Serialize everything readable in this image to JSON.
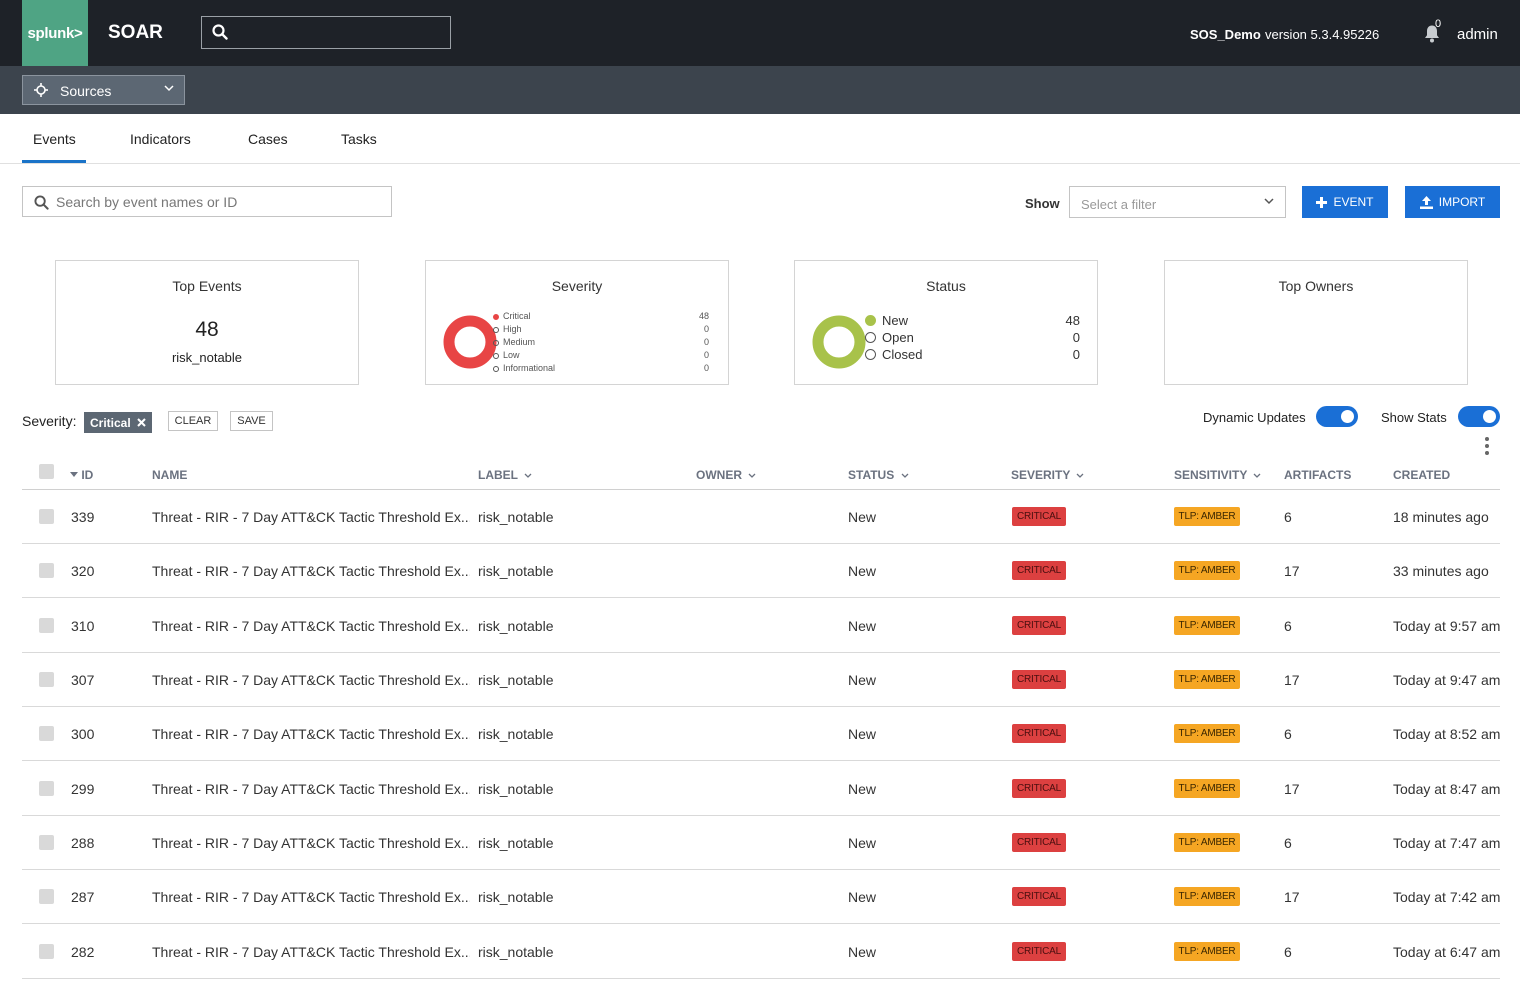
{
  "header": {
    "logo": "splunk>",
    "app_name": "SOAR",
    "instance_name": "SOS_Demo",
    "version": "version 5.3.4.95226",
    "notification_count": "0",
    "user": "admin"
  },
  "subnav": {
    "sources_label": "Sources"
  },
  "tabs": [
    {
      "label": "Events",
      "active": true
    },
    {
      "label": "Indicators"
    },
    {
      "label": "Cases"
    },
    {
      "label": "Tasks"
    }
  ],
  "search": {
    "placeholder": "Search by event names or ID"
  },
  "filter": {
    "show_label": "Show",
    "placeholder": "Select a filter"
  },
  "actions": {
    "event_label": "EVENT",
    "import_label": "IMPORT"
  },
  "stats": {
    "top_events": {
      "title": "Top Events",
      "count": "48",
      "label": "risk_notable"
    },
    "severity": {
      "title": "Severity",
      "items": [
        {
          "label": "Critical",
          "value": "48"
        },
        {
          "label": "High",
          "value": "0"
        },
        {
          "label": "Medium",
          "value": "0"
        },
        {
          "label": "Low",
          "value": "0"
        },
        {
          "label": "Informational",
          "value": "0"
        }
      ]
    },
    "status": {
      "title": "Status",
      "items": [
        {
          "label": "New",
          "value": "48"
        },
        {
          "label": "Open",
          "value": "0"
        },
        {
          "label": "Closed",
          "value": "0"
        }
      ]
    },
    "top_owners": {
      "title": "Top Owners"
    }
  },
  "active_filter": {
    "label": "Severity:",
    "chip": "Critical",
    "clear_label": "CLEAR",
    "save_label": "SAVE"
  },
  "toggles": {
    "dynamic_updates": {
      "label": "Dynamic Updates",
      "on": true
    },
    "show_stats": {
      "label": "Show Stats",
      "on": true
    }
  },
  "table": {
    "columns": {
      "id": "ID",
      "name": "NAME",
      "label": "LABEL",
      "owner": "OWNER",
      "status": "STATUS",
      "severity": "SEVERITY",
      "sensitivity": "SENSITIVITY",
      "artifacts": "ARTIFACTS",
      "created": "CREATED"
    },
    "rows": [
      {
        "id": "339",
        "name": "Threat - RIR - 7 Day ATT&CK Tactic Threshold Ex...",
        "label": "risk_notable",
        "owner": "",
        "status": "New",
        "severity": "CRITICAL",
        "sensitivity": "TLP: AMBER",
        "artifacts": "6",
        "created": "18 minutes ago"
      },
      {
        "id": "320",
        "name": "Threat - RIR - 7 Day ATT&CK Tactic Threshold Ex...",
        "label": "risk_notable",
        "owner": "",
        "status": "New",
        "severity": "CRITICAL",
        "sensitivity": "TLP: AMBER",
        "artifacts": "17",
        "created": "33 minutes ago"
      },
      {
        "id": "310",
        "name": "Threat - RIR - 7 Day ATT&CK Tactic Threshold Ex...",
        "label": "risk_notable",
        "owner": "",
        "status": "New",
        "severity": "CRITICAL",
        "sensitivity": "TLP: AMBER",
        "artifacts": "6",
        "created": "Today at 9:57 am"
      },
      {
        "id": "307",
        "name": "Threat - RIR - 7 Day ATT&CK Tactic Threshold Ex...",
        "label": "risk_notable",
        "owner": "",
        "status": "New",
        "severity": "CRITICAL",
        "sensitivity": "TLP: AMBER",
        "artifacts": "17",
        "created": "Today at 9:47 am"
      },
      {
        "id": "300",
        "name": "Threat - RIR - 7 Day ATT&CK Tactic Threshold Ex...",
        "label": "risk_notable",
        "owner": "",
        "status": "New",
        "severity": "CRITICAL",
        "sensitivity": "TLP: AMBER",
        "artifacts": "6",
        "created": "Today at 8:52 am"
      },
      {
        "id": "299",
        "name": "Threat - RIR - 7 Day ATT&CK Tactic Threshold Ex...",
        "label": "risk_notable",
        "owner": "",
        "status": "New",
        "severity": "CRITICAL",
        "sensitivity": "TLP: AMBER",
        "artifacts": "17",
        "created": "Today at 8:47 am"
      },
      {
        "id": "288",
        "name": "Threat - RIR - 7 Day ATT&CK Tactic Threshold Ex...",
        "label": "risk_notable",
        "owner": "",
        "status": "New",
        "severity": "CRITICAL",
        "sensitivity": "TLP: AMBER",
        "artifacts": "6",
        "created": "Today at 7:47 am"
      },
      {
        "id": "287",
        "name": "Threat - RIR - 7 Day ATT&CK Tactic Threshold Ex...",
        "label": "risk_notable",
        "owner": "",
        "status": "New",
        "severity": "CRITICAL",
        "sensitivity": "TLP: AMBER",
        "artifacts": "17",
        "created": "Today at 7:42 am"
      },
      {
        "id": "282",
        "name": "Threat - RIR - 7 Day ATT&CK Tactic Threshold Ex...",
        "label": "risk_notable",
        "owner": "",
        "status": "New",
        "severity": "CRITICAL",
        "sensitivity": "TLP: AMBER",
        "artifacts": "6",
        "created": "Today at 6:47 am"
      }
    ]
  },
  "colors": {
    "brand": "#4fa484",
    "primary": "#1a6fd6",
    "critical": "#dc4040",
    "amber": "#f5a623",
    "status_new": "#a8c24a"
  },
  "icons": [
    "search-icon",
    "bell-icon",
    "sources-icon",
    "chevron-down-icon",
    "plus-icon",
    "upload-icon",
    "close-icon",
    "kebab-menu-icon",
    "sort-down-icon"
  ]
}
